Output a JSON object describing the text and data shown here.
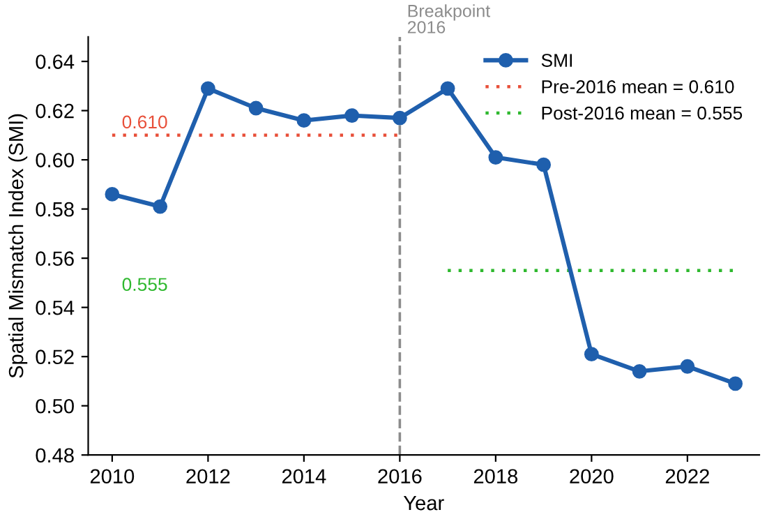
{
  "chart_data": {
    "type": "line",
    "xlabel": "Year",
    "ylabel": "Spatial Mismatch Index (SMI)",
    "x": [
      2010,
      2011,
      2012,
      2013,
      2014,
      2015,
      2016,
      2017,
      2018,
      2019,
      2020,
      2021,
      2022,
      2023
    ],
    "series": [
      {
        "name": "SMI",
        "color": "#1f5fad",
        "marker": "circle",
        "line_style": "solid",
        "values": [
          0.586,
          0.581,
          0.629,
          0.621,
          0.616,
          0.618,
          0.617,
          0.629,
          0.601,
          0.598,
          0.521,
          0.514,
          0.516,
          0.509
        ]
      },
      {
        "name": "Pre-2016 mean = 0.610",
        "color": "#e8503a",
        "marker": "none",
        "line_style": "dotted",
        "x": [
          2010,
          2016
        ],
        "values": [
          0.61,
          0.61
        ]
      },
      {
        "name": "Post-2016 mean = 0.555",
        "color": "#2eb82e",
        "marker": "none",
        "line_style": "dotted",
        "x": [
          2017,
          2023
        ],
        "values": [
          0.555,
          0.555
        ]
      }
    ],
    "ref_lines": [
      {
        "axis": "x",
        "value": 2016,
        "label": "Breakpoint\n2016",
        "color": "#8c8c8c",
        "line_style": "dashed"
      }
    ],
    "annotations": [
      "0.610",
      "0.555"
    ],
    "xlim": [
      2009.5,
      2023.5
    ],
    "ylim": [
      0.48,
      0.65
    ],
    "xticks": [
      2010,
      2012,
      2014,
      2016,
      2018,
      2020,
      2022
    ],
    "yticks": [
      {
        "value": 0.48,
        "label": "0.48"
      },
      {
        "value": 0.5,
        "label": "0.50"
      },
      {
        "value": 0.52,
        "label": "0.52"
      },
      {
        "value": 0.54,
        "label": "0.54"
      },
      {
        "value": 0.56,
        "label": "0.56"
      },
      {
        "value": 0.58,
        "label": "0.58"
      },
      {
        "value": 0.6,
        "label": "0.60"
      },
      {
        "value": 0.62,
        "label": "0.62"
      },
      {
        "value": 0.64,
        "label": "0.64"
      }
    ],
    "grid": false,
    "legend": "top right"
  }
}
